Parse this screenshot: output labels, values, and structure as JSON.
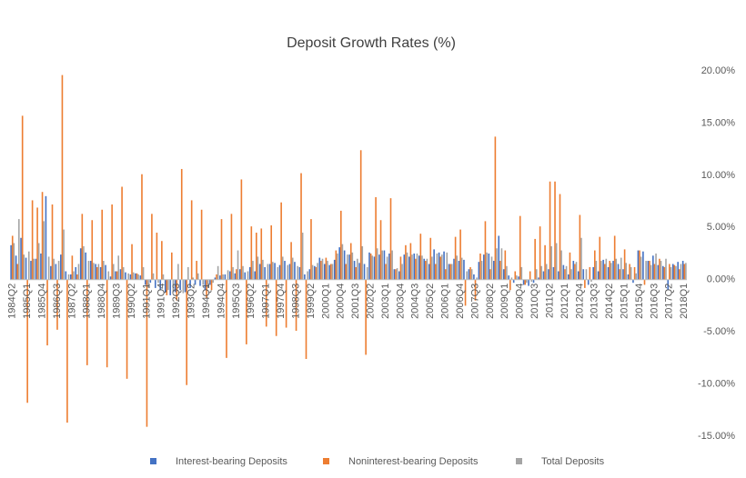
{
  "chart_data": {
    "type": "bar",
    "title": "Deposit Growth Rates (%)",
    "categories": [
      "1984Q2",
      null,
      null,
      "1985Q1",
      null,
      null,
      "1985Q4",
      null,
      null,
      "1986Q3",
      null,
      null,
      "1987Q2",
      null,
      null,
      "1988Q1",
      null,
      null,
      "1988Q4",
      null,
      null,
      "1989Q3",
      null,
      null,
      "1990Q2",
      null,
      null,
      "1991Q1",
      null,
      null,
      "1991Q4",
      null,
      null,
      "1992Q3",
      null,
      null,
      "1993Q2",
      null,
      null,
      "1994Q1",
      null,
      null,
      "1994Q4",
      null,
      null,
      "1995Q3",
      null,
      null,
      "1996Q2",
      null,
      null,
      "1997Q1",
      null,
      null,
      "1997Q4",
      null,
      null,
      "1998Q3",
      null,
      null,
      "1999Q2",
      null,
      null,
      "2000Q1",
      null,
      null,
      "2000Q4",
      null,
      null,
      "2001Q3",
      null,
      null,
      "2002Q2",
      null,
      null,
      "2003Q1",
      null,
      null,
      "2003Q4",
      null,
      null,
      "2004Q3",
      null,
      null,
      "2005Q2",
      null,
      null,
      "2006Q1",
      null,
      null,
      "2006Q4",
      null,
      null,
      "2007Q3",
      null,
      null,
      "2008Q2",
      null,
      null,
      "2009Q1",
      null,
      null,
      "2009Q4",
      null,
      null,
      "2010Q3",
      null,
      null,
      "2011Q2",
      null,
      null,
      "2012Q1",
      null,
      null,
      "2012Q4",
      null,
      null,
      "2013Q3",
      null,
      null,
      "2014Q2",
      null,
      null,
      "2015Q1",
      null,
      null,
      "2015Q4",
      null,
      null,
      "2016Q3",
      null,
      null,
      "2017Q2",
      null,
      null,
      "2018Q1"
    ],
    "series": [
      {
        "name": "Interest-bearing Deposits",
        "color": "#4472c4",
        "values": [
          3.3,
          2.3,
          4.0,
          2.1,
          1.8,
          2.0,
          2.5,
          8.0,
          1.3,
          1.5,
          2.4,
          0.8,
          0.5,
          1.2,
          3.0,
          2.6,
          1.8,
          1.5,
          1.2,
          1.4,
          0.3,
          0.8,
          1.0,
          0.7,
          0.5,
          0.6,
          0.4,
          -0.5,
          -0.3,
          -0.8,
          -1.0,
          -1.2,
          -1.5,
          -1.2,
          -1.0,
          -1.2,
          -0.8,
          -0.5,
          -0.6,
          -1.0,
          -0.5,
          0.2,
          0.4,
          0.5,
          0.8,
          0.6,
          1.0,
          0.7,
          1.2,
          0.8,
          1.5,
          1.2,
          1.5,
          1.6,
          1.4,
          1.8,
          1.5,
          1.7,
          1.2,
          0.5,
          1.0,
          1.3,
          2.1,
          1.5,
          1.4,
          1.9,
          3.1,
          2.8,
          2.4,
          1.8,
          1.6,
          1.5,
          2.6,
          2.2,
          2.4,
          2.8,
          2.5,
          1.0,
          0.8,
          2.4,
          2.2,
          2.5,
          2.3,
          2.0,
          1.5,
          2.9,
          2.6,
          2.7,
          1.5,
          2.0,
          1.8,
          1.9,
          1.0,
          0.5,
          1.7,
          2.4,
          2.5,
          1.8,
          4.2,
          1.0,
          0.4,
          -0.3,
          0.3,
          -0.5,
          -0.6,
          -0.3,
          0.2,
          0.8,
          1.0,
          1.2,
          0.8,
          1.4,
          0.5,
          1.8,
          0.8,
          1.0,
          -0.5,
          1.2,
          0.8,
          1.9,
          1.2,
          1.8,
          1.5,
          1.0,
          0.5,
          -0.3,
          2.8,
          2.7,
          1.8,
          2.3,
          1.4,
          1.3,
          -1.0,
          1.5,
          1.7,
          1.8
        ]
      },
      {
        "name": "Noninterest-bearing Deposits",
        "color": "#ed7d31",
        "values": [
          4.2,
          1.5,
          15.7,
          -11.8,
          7.6,
          6.9,
          8.4,
          -6.3,
          7.2,
          -4.8,
          19.6,
          -13.7,
          2.3,
          0.5,
          6.3,
          -8.2,
          5.7,
          1.2,
          6.7,
          -8.4,
          7.2,
          0.8,
          8.9,
          -9.5,
          3.4,
          0.6,
          10.1,
          -14.1,
          6.3,
          4.5,
          3.7,
          -1.5,
          2.6,
          -2.0,
          10.6,
          -10.1,
          7.6,
          1.8,
          6.7,
          -1.8,
          -1.0,
          0.5,
          5.8,
          -7.5,
          6.3,
          1.0,
          9.6,
          -6.2,
          5.1,
          4.5,
          4.9,
          -4.5,
          5.2,
          -5.4,
          7.4,
          -4.6,
          3.6,
          -4.9,
          10.2,
          -7.6,
          5.8,
          1.2,
          1.8,
          2.1,
          1.5,
          2.8,
          6.6,
          1.5,
          3.5,
          1.2,
          12.4,
          -7.2,
          2.5,
          7.9,
          5.7,
          1.5,
          7.8,
          1.0,
          2.2,
          3.3,
          3.5,
          2.0,
          4.4,
          1.8,
          4.0,
          1.5,
          2.2,
          1.0,
          1.5,
          4.1,
          4.8,
          -2.5,
          1.2,
          -2.0,
          2.5,
          5.6,
          1.0,
          13.7,
          1.8,
          2.8,
          -1.0,
          0.8,
          6.1,
          -0.5,
          0.8,
          3.9,
          5.1,
          3.3,
          9.4,
          9.4,
          8.2,
          1.0,
          2.6,
          1.5,
          6.2,
          -0.8,
          1.2,
          2.8,
          4.1,
          1.5,
          1.8,
          4.2,
          1.0,
          2.9,
          1.5,
          1.2,
          2.8,
          -0.5,
          1.8,
          1.5,
          2.0,
          1.2,
          1.5,
          1.4,
          1.0,
          1.5
        ]
      },
      {
        "name": "Total Deposits",
        "color": "#a5a5a5",
        "values": [
          3.5,
          5.8,
          2.4,
          2.7,
          2.0,
          3.5,
          5.6,
          2.2,
          2.0,
          1.8,
          4.8,
          0.5,
          0.8,
          1.5,
          3.2,
          1.8,
          1.6,
          1.5,
          1.8,
          0.8,
          1.5,
          2.3,
          1.2,
          0.6,
          0.7,
          0.5,
          1.2,
          -0.8,
          0.6,
          -0.3,
          0.5,
          -1.0,
          -1.2,
          1.5,
          -1.3,
          1.2,
          0.2,
          0.6,
          -0.5,
          -0.8,
          -0.3,
          1.3,
          0.5,
          0.9,
          1.2,
          2.8,
          1.3,
          0.8,
          1.8,
          2.2,
          1.9,
          1.5,
          1.7,
          1.2,
          2.2,
          1.4,
          2.1,
          1.3,
          4.5,
          0.8,
          1.4,
          1.6,
          2.0,
          1.8,
          1.5,
          2.5,
          3.4,
          2.4,
          2.6,
          2.0,
          3.2,
          1.2,
          2.3,
          3.0,
          2.8,
          2.2,
          2.8,
          1.1,
          1.5,
          2.6,
          2.4,
          2.5,
          2.3,
          2.0,
          2.2,
          2.5,
          2.4,
          2.6,
          1.5,
          2.3,
          2.1,
          0.8,
          1.0,
          0.2,
          1.8,
          2.6,
          2.2,
          3.0,
          3.0,
          1.3,
          0.2,
          0.4,
          1.2,
          -0.3,
          -0.2,
          1.0,
          1.3,
          1.5,
          3.2,
          3.5,
          2.8,
          1.3,
          1.0,
          1.7,
          4.0,
          1.0,
          -0.2,
          1.8,
          1.8,
          2.0,
          1.6,
          2.0,
          2.1,
          1.6,
          1.2,
          0.6,
          2.2,
          1.8,
          1.4,
          2.5,
          1.8,
          2.0,
          1.2,
          1.3,
          1.5,
          1.6
        ]
      }
    ],
    "ylim": [
      -15,
      20
    ],
    "yticks": [
      {
        "value": 20,
        "label": "20.00%"
      },
      {
        "value": 15,
        "label": "15.00%"
      },
      {
        "value": 10,
        "label": "10.00%"
      },
      {
        "value": 5,
        "label": "5.00%"
      },
      {
        "value": 0,
        "label": "0.00%"
      },
      {
        "value": -5,
        "label": "-5.00%"
      },
      {
        "value": -10,
        "label": "-10.00%"
      },
      {
        "value": -15,
        "label": "-15.00%"
      }
    ],
    "grid": false
  }
}
